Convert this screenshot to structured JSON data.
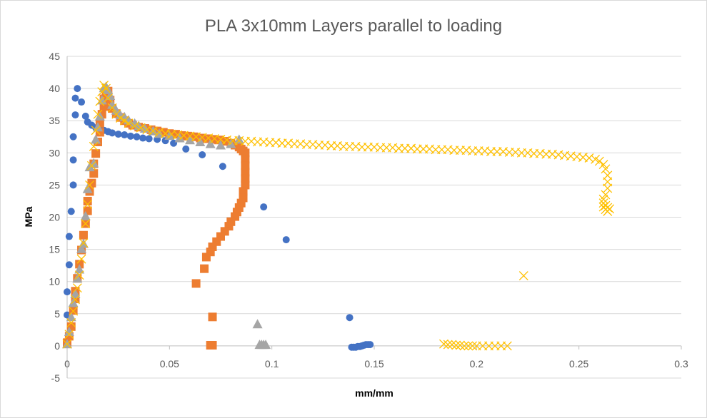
{
  "chart_data": {
    "type": "scatter",
    "title": "PLA 3x10mm Layers parallel to loading",
    "xlabel": "mm/mm",
    "ylabel": "MPa",
    "xlim": [
      0,
      0.3
    ],
    "ylim": [
      -5,
      45
    ],
    "x_ticks": [
      "0",
      "0.05",
      "0.1",
      "0.15",
      "0.2",
      "0.25",
      "0.3"
    ],
    "y_ticks": [
      "-5",
      "0",
      "5",
      "10",
      "15",
      "20",
      "25",
      "30",
      "35",
      "40",
      "45"
    ],
    "grid": "horizontal",
    "legend": "none",
    "series": [
      {
        "color": "#4472c4",
        "marker": "circle",
        "points": [
          [
            0.0,
            0.5
          ],
          [
            0.0,
            4.8
          ],
          [
            0.0,
            8.4
          ],
          [
            0.001,
            12.6
          ],
          [
            0.001,
            17.0
          ],
          [
            0.002,
            20.9
          ],
          [
            0.003,
            25.0
          ],
          [
            0.003,
            28.9
          ],
          [
            0.003,
            32.5
          ],
          [
            0.004,
            35.9
          ],
          [
            0.004,
            38.5
          ],
          [
            0.005,
            40.0
          ],
          [
            0.007,
            37.9
          ],
          [
            0.009,
            35.7
          ],
          [
            0.01,
            34.8
          ],
          [
            0.012,
            34.3
          ],
          [
            0.014,
            33.9
          ],
          [
            0.016,
            33.7
          ],
          [
            0.018,
            33.5
          ],
          [
            0.02,
            33.3
          ],
          [
            0.022,
            33.1
          ],
          [
            0.025,
            32.9
          ],
          [
            0.028,
            32.8
          ],
          [
            0.031,
            32.6
          ],
          [
            0.034,
            32.5
          ],
          [
            0.037,
            32.3
          ],
          [
            0.04,
            32.2
          ],
          [
            0.044,
            32.1
          ],
          [
            0.048,
            31.9
          ],
          [
            0.052,
            31.5
          ],
          [
            0.058,
            30.6
          ],
          [
            0.066,
            29.7
          ],
          [
            0.076,
            27.9
          ],
          [
            0.087,
            25.2
          ],
          [
            0.096,
            21.6
          ],
          [
            0.107,
            16.5
          ],
          [
            0.138,
            4.4
          ],
          [
            0.139,
            -0.2
          ],
          [
            0.14,
            -0.2
          ],
          [
            0.141,
            -0.2
          ],
          [
            0.142,
            -0.1
          ],
          [
            0.143,
            -0.1
          ],
          [
            0.144,
            0.0
          ],
          [
            0.145,
            0.1
          ],
          [
            0.146,
            0.2
          ],
          [
            0.147,
            0.2
          ],
          [
            0.148,
            0.2
          ]
        ]
      },
      {
        "color": "#ed7d31",
        "marker": "square",
        "points": [
          [
            0.0,
            0.5
          ],
          [
            0.001,
            1.5
          ],
          [
            0.002,
            3.0
          ],
          [
            0.003,
            5.5
          ],
          [
            0.004,
            7.3
          ],
          [
            0.004,
            8.5
          ],
          [
            0.005,
            10.5
          ],
          [
            0.006,
            12.7
          ],
          [
            0.007,
            14.9
          ],
          [
            0.008,
            17.2
          ],
          [
            0.009,
            19.0
          ],
          [
            0.01,
            21.0
          ],
          [
            0.01,
            22.5
          ],
          [
            0.011,
            24.0
          ],
          [
            0.012,
            25.3
          ],
          [
            0.013,
            26.8
          ],
          [
            0.013,
            28.3
          ],
          [
            0.014,
            29.9
          ],
          [
            0.015,
            31.7
          ],
          [
            0.016,
            33.2
          ],
          [
            0.016,
            34.6
          ],
          [
            0.017,
            36.0
          ],
          [
            0.018,
            37.2
          ],
          [
            0.018,
            38.4
          ],
          [
            0.019,
            39.3
          ],
          [
            0.02,
            39.6
          ],
          [
            0.021,
            38.2
          ],
          [
            0.022,
            36.9
          ],
          [
            0.024,
            36.1
          ],
          [
            0.026,
            35.5
          ],
          [
            0.028,
            35.0
          ],
          [
            0.03,
            34.6
          ],
          [
            0.032,
            34.3
          ],
          [
            0.035,
            34.0
          ],
          [
            0.038,
            33.8
          ],
          [
            0.041,
            33.6
          ],
          [
            0.044,
            33.4
          ],
          [
            0.047,
            33.2
          ],
          [
            0.05,
            33.0
          ],
          [
            0.053,
            32.9
          ],
          [
            0.056,
            32.7
          ],
          [
            0.059,
            32.6
          ],
          [
            0.062,
            32.5
          ],
          [
            0.065,
            32.3
          ],
          [
            0.068,
            32.2
          ],
          [
            0.071,
            32.1
          ],
          [
            0.074,
            32.0
          ],
          [
            0.077,
            31.8
          ],
          [
            0.08,
            31.5
          ],
          [
            0.082,
            31.2
          ],
          [
            0.084,
            30.9
          ],
          [
            0.085,
            30.6
          ],
          [
            0.086,
            30.3
          ],
          [
            0.087,
            30.0
          ],
          [
            0.087,
            29.0
          ],
          [
            0.087,
            28.0
          ],
          [
            0.087,
            27.0
          ],
          [
            0.087,
            26.0
          ],
          [
            0.087,
            25.0
          ],
          [
            0.086,
            24.0
          ],
          [
            0.086,
            23.0
          ],
          [
            0.085,
            22.2
          ],
          [
            0.084,
            21.5
          ],
          [
            0.083,
            20.8
          ],
          [
            0.082,
            20.1
          ],
          [
            0.08,
            19.3
          ],
          [
            0.079,
            18.6
          ],
          [
            0.077,
            17.8
          ],
          [
            0.075,
            17.0
          ],
          [
            0.073,
            16.2
          ],
          [
            0.071,
            15.4
          ],
          [
            0.07,
            14.6
          ],
          [
            0.068,
            13.8
          ],
          [
            0.067,
            12.0
          ],
          [
            0.063,
            9.7
          ],
          [
            0.071,
            4.5
          ],
          [
            0.07,
            0.1
          ],
          [
            0.071,
            0.1
          ]
        ]
      },
      {
        "color": "#a5a5a5",
        "marker": "triangle",
        "points": [
          [
            0.0,
            0.3
          ],
          [
            0.001,
            2.2
          ],
          [
            0.002,
            4.5
          ],
          [
            0.003,
            6.7
          ],
          [
            0.004,
            8.1
          ],
          [
            0.005,
            10.5
          ],
          [
            0.006,
            11.9
          ],
          [
            0.007,
            15.1
          ],
          [
            0.008,
            15.9
          ],
          [
            0.009,
            20.2
          ],
          [
            0.01,
            24.4
          ],
          [
            0.011,
            27.8
          ],
          [
            0.013,
            28.4
          ],
          [
            0.014,
            32.1
          ],
          [
            0.015,
            34.0
          ],
          [
            0.016,
            35.7
          ],
          [
            0.017,
            38.2
          ],
          [
            0.018,
            40.1
          ],
          [
            0.019,
            40.3
          ],
          [
            0.02,
            39.8
          ],
          [
            0.021,
            38.9
          ],
          [
            0.022,
            37.5
          ],
          [
            0.024,
            36.6
          ],
          [
            0.026,
            35.9
          ],
          [
            0.028,
            35.6
          ],
          [
            0.03,
            35.1
          ],
          [
            0.033,
            34.6
          ],
          [
            0.035,
            34.2
          ],
          [
            0.038,
            33.8
          ],
          [
            0.042,
            33.4
          ],
          [
            0.045,
            33.0
          ],
          [
            0.05,
            32.7
          ],
          [
            0.055,
            32.3
          ],
          [
            0.06,
            32.0
          ],
          [
            0.065,
            31.7
          ],
          [
            0.07,
            31.4
          ],
          [
            0.075,
            31.2
          ],
          [
            0.08,
            31.4
          ],
          [
            0.084,
            32.1
          ],
          [
            0.093,
            3.4
          ],
          [
            0.094,
            0.2
          ],
          [
            0.095,
            0.2
          ],
          [
            0.096,
            0.2
          ],
          [
            0.097,
            0.2
          ]
        ]
      },
      {
        "color": "#ffc000",
        "marker": "cross",
        "points": [
          [
            0.0,
            0.3
          ],
          [
            0.001,
            1.8
          ],
          [
            0.002,
            3.6
          ],
          [
            0.003,
            5.4
          ],
          [
            0.004,
            7.2
          ],
          [
            0.005,
            9.0
          ],
          [
            0.006,
            11.0
          ],
          [
            0.007,
            13.5
          ],
          [
            0.008,
            16.0
          ],
          [
            0.009,
            19.0
          ],
          [
            0.01,
            22.0
          ],
          [
            0.011,
            25.0
          ],
          [
            0.012,
            28.0
          ],
          [
            0.013,
            31.0
          ],
          [
            0.014,
            33.5
          ],
          [
            0.015,
            36.0
          ],
          [
            0.016,
            38.0
          ],
          [
            0.017,
            39.5
          ],
          [
            0.018,
            40.5
          ],
          [
            0.019,
            40.0
          ],
          [
            0.02,
            38.5
          ],
          [
            0.022,
            37.0
          ],
          [
            0.024,
            36.0
          ],
          [
            0.026,
            35.4
          ],
          [
            0.028,
            35.0
          ],
          [
            0.03,
            34.6
          ],
          [
            0.033,
            34.2
          ],
          [
            0.036,
            33.9
          ],
          [
            0.039,
            33.6
          ],
          [
            0.042,
            33.4
          ],
          [
            0.045,
            33.2
          ],
          [
            0.048,
            33.0
          ],
          [
            0.051,
            32.9
          ],
          [
            0.054,
            32.8
          ],
          [
            0.057,
            32.7
          ],
          [
            0.06,
            32.6
          ],
          [
            0.063,
            32.5
          ],
          [
            0.066,
            32.4
          ],
          [
            0.069,
            32.3
          ],
          [
            0.072,
            32.2
          ],
          [
            0.075,
            32.1
          ],
          [
            0.078,
            32.0
          ],
          [
            0.081,
            31.9
          ],
          [
            0.084,
            31.9
          ],
          [
            0.087,
            31.8
          ],
          [
            0.09,
            31.8
          ],
          [
            0.093,
            31.7
          ],
          [
            0.096,
            31.7
          ],
          [
            0.099,
            31.6
          ],
          [
            0.102,
            31.6
          ],
          [
            0.105,
            31.5
          ],
          [
            0.108,
            31.5
          ],
          [
            0.111,
            31.4
          ],
          [
            0.114,
            31.4
          ],
          [
            0.117,
            31.3
          ],
          [
            0.12,
            31.3
          ],
          [
            0.123,
            31.2
          ],
          [
            0.126,
            31.2
          ],
          [
            0.129,
            31.1
          ],
          [
            0.132,
            31.1
          ],
          [
            0.135,
            31.0
          ],
          [
            0.138,
            31.0
          ],
          [
            0.141,
            31.0
          ],
          [
            0.144,
            30.9
          ],
          [
            0.147,
            30.9
          ],
          [
            0.15,
            30.9
          ],
          [
            0.153,
            30.8
          ],
          [
            0.156,
            30.8
          ],
          [
            0.159,
            30.8
          ],
          [
            0.162,
            30.7
          ],
          [
            0.165,
            30.7
          ],
          [
            0.168,
            30.7
          ],
          [
            0.171,
            30.6
          ],
          [
            0.174,
            30.6
          ],
          [
            0.177,
            30.6
          ],
          [
            0.18,
            30.5
          ],
          [
            0.183,
            30.5
          ],
          [
            0.186,
            30.5
          ],
          [
            0.189,
            30.4
          ],
          [
            0.192,
            30.4
          ],
          [
            0.195,
            30.4
          ],
          [
            0.198,
            30.3
          ],
          [
            0.201,
            30.3
          ],
          [
            0.204,
            30.3
          ],
          [
            0.207,
            30.2
          ],
          [
            0.21,
            30.2
          ],
          [
            0.213,
            30.2
          ],
          [
            0.216,
            30.1
          ],
          [
            0.219,
            30.1
          ],
          [
            0.222,
            30.0
          ],
          [
            0.225,
            30.0
          ],
          [
            0.228,
            29.9
          ],
          [
            0.231,
            29.9
          ],
          [
            0.234,
            29.8
          ],
          [
            0.237,
            29.8
          ],
          [
            0.24,
            29.7
          ],
          [
            0.243,
            29.6
          ],
          [
            0.246,
            29.5
          ],
          [
            0.249,
            29.4
          ],
          [
            0.252,
            29.3
          ],
          [
            0.255,
            29.2
          ],
          [
            0.258,
            29.0
          ],
          [
            0.26,
            28.7
          ],
          [
            0.262,
            28.2
          ],
          [
            0.263,
            27.5
          ],
          [
            0.264,
            26.5
          ],
          [
            0.264,
            25.5
          ],
          [
            0.264,
            24.5
          ],
          [
            0.263,
            23.5
          ],
          [
            0.262,
            22.8
          ],
          [
            0.262,
            22.2
          ],
          [
            0.263,
            21.8
          ],
          [
            0.264,
            21.5
          ],
          [
            0.263,
            21.2
          ],
          [
            0.264,
            20.9
          ],
          [
            0.265,
            21.3
          ],
          [
            0.262,
            21.6
          ],
          [
            0.223,
            10.9
          ],
          [
            0.184,
            0.3
          ],
          [
            0.186,
            0.2
          ],
          [
            0.188,
            0.2
          ],
          [
            0.19,
            0.1
          ],
          [
            0.192,
            0.1
          ],
          [
            0.194,
            0.0
          ],
          [
            0.196,
            0.0
          ],
          [
            0.198,
            0.0
          ],
          [
            0.2,
            0.0
          ],
          [
            0.203,
            0.0
          ],
          [
            0.206,
            0.0
          ],
          [
            0.209,
            0.0
          ],
          [
            0.212,
            0.0
          ],
          [
            0.215,
            0.0
          ]
        ]
      }
    ]
  }
}
